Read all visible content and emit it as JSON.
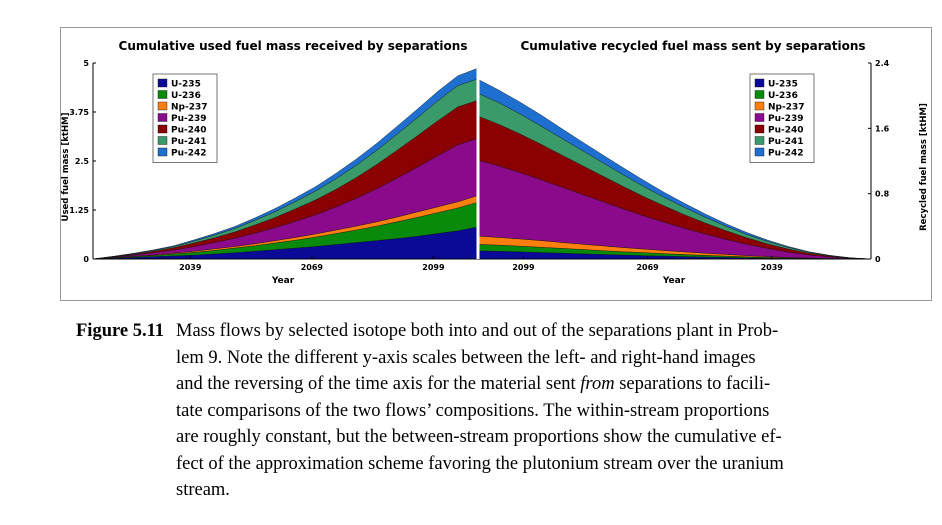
{
  "chart_data": [
    {
      "type": "area",
      "stacked": true,
      "title": "Cumulative used fuel mass received by separations",
      "xlabel": "Year",
      "ylabel": "Used fuel mass [ktHM]",
      "yticks": [
        "0",
        "1.25",
        "2.5",
        "3.75",
        "5"
      ],
      "ylim": [
        0,
        5
      ],
      "xticks": [
        "2039",
        "2069",
        "2099"
      ],
      "xlim": [
        2015,
        2110
      ],
      "legend_position": "top-left",
      "series_order": [
        "U-235",
        "U-236",
        "Np-237",
        "Pu-239",
        "Pu-240",
        "Pu-241",
        "Pu-242"
      ],
      "x": [
        2015,
        2020,
        2025,
        2030,
        2035,
        2040,
        2045,
        2050,
        2055,
        2060,
        2065,
        2070,
        2075,
        2080,
        2085,
        2090,
        2095,
        2100,
        2105,
        2110
      ],
      "layer_tops": {
        "U-235": [
          0,
          0.02,
          0.04,
          0.06,
          0.08,
          0.1,
          0.13,
          0.16,
          0.2,
          0.24,
          0.28,
          0.32,
          0.37,
          0.42,
          0.47,
          0.52,
          0.58,
          0.65,
          0.72,
          0.82
        ],
        "U-236": [
          0,
          0.03,
          0.06,
          0.09,
          0.13,
          0.17,
          0.22,
          0.28,
          0.34,
          0.41,
          0.48,
          0.56,
          0.65,
          0.74,
          0.84,
          0.95,
          1.06,
          1.18,
          1.3,
          1.45
        ],
        "Np-237": [
          0,
          0.035,
          0.07,
          0.105,
          0.15,
          0.2,
          0.26,
          0.32,
          0.39,
          0.47,
          0.55,
          0.64,
          0.74,
          0.84,
          0.95,
          1.07,
          1.2,
          1.33,
          1.46,
          1.62
        ],
        "Pu-239": [
          0,
          0.05,
          0.1,
          0.16,
          0.23,
          0.32,
          0.42,
          0.53,
          0.66,
          0.8,
          0.96,
          1.13,
          1.33,
          1.55,
          1.79,
          2.06,
          2.34,
          2.63,
          2.91,
          3.08
        ],
        "Pu-240": [
          0,
          0.06,
          0.12,
          0.2,
          0.29,
          0.41,
          0.54,
          0.69,
          0.87,
          1.06,
          1.28,
          1.51,
          1.78,
          2.08,
          2.41,
          2.77,
          3.14,
          3.52,
          3.88,
          4.05
        ],
        "Pu-241": [
          0,
          0.065,
          0.135,
          0.22,
          0.32,
          0.46,
          0.61,
          0.78,
          0.99,
          1.21,
          1.47,
          1.74,
          2.05,
          2.39,
          2.77,
          3.18,
          3.6,
          4.03,
          4.42,
          4.6
        ],
        "Pu-242": [
          0,
          0.07,
          0.145,
          0.235,
          0.34,
          0.49,
          0.65,
          0.83,
          1.05,
          1.29,
          1.56,
          1.85,
          2.19,
          2.55,
          2.95,
          3.38,
          3.82,
          4.27,
          4.67,
          4.87
        ]
      }
    },
    {
      "type": "area",
      "stacked": true,
      "title": "Cumulative recycled fuel mass sent by separations",
      "xlabel": "Year",
      "ylabel": "Recycled fuel mass [ktHM]",
      "yticks": [
        "0",
        "0.8",
        "1.6",
        "2.4"
      ],
      "ylim": [
        0,
        2.4
      ],
      "xticks": [
        "2099",
        "2069",
        "2039"
      ],
      "xlim": [
        2110,
        2015
      ],
      "x_axis_reversed": true,
      "legend_position": "top-right",
      "series_order": [
        "U-235",
        "U-236",
        "Np-237",
        "Pu-239",
        "Pu-240",
        "Pu-241",
        "Pu-242"
      ],
      "x": [
        2110,
        2105,
        2100,
        2095,
        2090,
        2085,
        2080,
        2075,
        2070,
        2065,
        2060,
        2055,
        2050,
        2045,
        2040,
        2035,
        2030,
        2025,
        2020,
        2015
      ],
      "layer_tops": {
        "U-235": [
          0.1,
          0.095,
          0.088,
          0.08,
          0.072,
          0.064,
          0.056,
          0.049,
          0.042,
          0.036,
          0.03,
          0.024,
          0.019,
          0.014,
          0.01,
          0.007,
          0.004,
          0.002,
          0.001,
          0
        ],
        "U-236": [
          0.18,
          0.17,
          0.158,
          0.145,
          0.131,
          0.117,
          0.103,
          0.09,
          0.078,
          0.066,
          0.055,
          0.045,
          0.035,
          0.027,
          0.019,
          0.013,
          0.008,
          0.004,
          0.001,
          0
        ],
        "Np-237": [
          0.28,
          0.265,
          0.246,
          0.226,
          0.205,
          0.183,
          0.162,
          0.141,
          0.122,
          0.104,
          0.087,
          0.071,
          0.056,
          0.042,
          0.03,
          0.02,
          0.012,
          0.006,
          0.002,
          0
        ],
        "Pu-239": [
          1.21,
          1.14,
          1.06,
          0.975,
          0.885,
          0.795,
          0.705,
          0.615,
          0.53,
          0.45,
          0.375,
          0.305,
          0.24,
          0.18,
          0.13,
          0.085,
          0.05,
          0.025,
          0.008,
          0
        ],
        "Pu-240": [
          1.75,
          1.65,
          1.535,
          1.41,
          1.28,
          1.15,
          1.02,
          0.89,
          0.765,
          0.65,
          0.54,
          0.44,
          0.345,
          0.26,
          0.185,
          0.122,
          0.072,
          0.036,
          0.012,
          0
        ],
        "Pu-241": [
          2.03,
          1.915,
          1.78,
          1.635,
          1.485,
          1.335,
          1.185,
          1.035,
          0.89,
          0.755,
          0.63,
          0.51,
          0.4,
          0.3,
          0.215,
          0.142,
          0.084,
          0.042,
          0.014,
          0
        ],
        "Pu-242": [
          2.2,
          2.07,
          1.925,
          1.77,
          1.605,
          1.44,
          1.28,
          1.12,
          0.965,
          0.815,
          0.68,
          0.55,
          0.43,
          0.325,
          0.232,
          0.153,
          0.09,
          0.045,
          0.015,
          0
        ]
      }
    }
  ],
  "legend": [
    {
      "label": "U-235",
      "color": "#0a0a96"
    },
    {
      "label": "U-236",
      "color": "#0a8a0a"
    },
    {
      "label": "Np-237",
      "color": "#ff7f0e"
    },
    {
      "label": "Pu-239",
      "color": "#8b0a8b"
    },
    {
      "label": "Pu-240",
      "color": "#8b0000"
    },
    {
      "label": "Pu-241",
      "color": "#3a9a6a"
    },
    {
      "label": "Pu-242",
      "color": "#1f6fd0"
    }
  ],
  "caption": {
    "label": "Figure 5.11",
    "lines": [
      "Mass flows by selected isotope both into and out of the separations plant in Prob-",
      "lem 9.  Note the different y-axis scales between the left- and right-hand images",
      "and the reversing of the time axis for the material sent",
      "from",
      " separations to facili-",
      "tate comparisons of the two flows’ compositions.  The within-stream proportions",
      "are roughly constant, but the between-stream proportions show the cumulative ef-",
      "fect of the approximation scheme favoring the plutonium stream over the uranium",
      "stream."
    ]
  }
}
